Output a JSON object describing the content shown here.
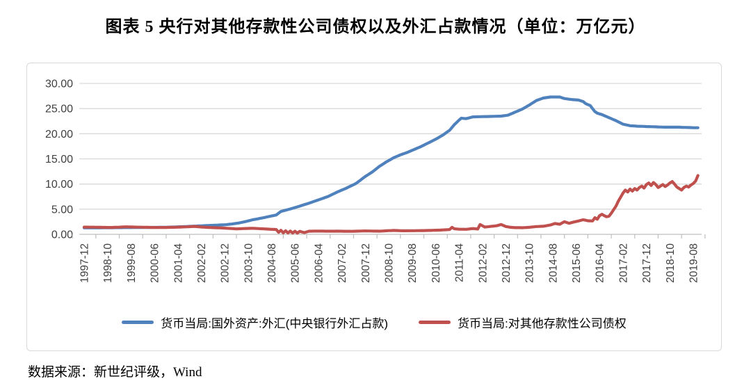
{
  "title": "图表 5  央行对其他存款性公司债权以及外汇占款情况（单位：万亿元）",
  "footer": {
    "source_label": "数据来源：新世纪评级，Wind"
  },
  "colors": {
    "series_fx_blue": "#4F81BD",
    "series_claims_red": "#C0504D",
    "gridline": "#D9D9D9",
    "axis_line": "#BFBFBF",
    "tick_text": "#404040",
    "panel_border": "#D9D9D9"
  },
  "chart_data": {
    "type": "line",
    "title": "图表 5  央行对其他存款性公司债权以及外汇占款情况（单位：万亿元）",
    "unit": "万亿元",
    "ylim": [
      0,
      30
    ],
    "y_tick_labels": [
      "30.00",
      "25.00",
      "20.00",
      "15.00",
      "10.00",
      "5.00",
      "0.00"
    ],
    "grid": "horizontal",
    "legend_position": "bottom",
    "x_start": "1997-12",
    "x_frequency": "monthly",
    "x_tick_every_months": 10,
    "x_tick_labels": [
      "1997-12",
      "1998-10",
      "1999-08",
      "2000-06",
      "2001-04",
      "2002-02",
      "2002-12",
      "2003-10",
      "2004-08",
      "2005-06",
      "2006-04",
      "2007-02",
      "2007-12",
      "2008-10",
      "2009-08",
      "2010-06",
      "2011-04",
      "2012-02",
      "2012-12",
      "2013-10",
      "2014-08",
      "2015-06",
      "2016-04",
      "2017-02",
      "2017-12",
      "2018-10",
      "2019-08"
    ],
    "series": [
      {
        "name": "货币当局:国外资产:外汇(中央银行外汇占款)",
        "color": "#4F81BD",
        "points_months_since_start_and_value": [
          [
            0,
            1.28
          ],
          [
            6,
            1.3
          ],
          [
            12,
            1.32
          ],
          [
            18,
            1.34
          ],
          [
            24,
            1.36
          ],
          [
            30,
            1.38
          ],
          [
            36,
            1.42
          ],
          [
            42,
            1.52
          ],
          [
            48,
            1.65
          ],
          [
            54,
            1.78
          ],
          [
            60,
            1.9
          ],
          [
            63,
            2.05
          ],
          [
            66,
            2.25
          ],
          [
            69,
            2.55
          ],
          [
            72,
            2.9
          ],
          [
            76,
            3.25
          ],
          [
            80,
            3.65
          ],
          [
            82,
            3.85
          ],
          [
            84,
            4.55
          ],
          [
            88,
            5.05
          ],
          [
            92,
            5.6
          ],
          [
            96,
            6.2
          ],
          [
            100,
            6.85
          ],
          [
            104,
            7.5
          ],
          [
            108,
            8.4
          ],
          [
            112,
            9.2
          ],
          [
            116,
            10.1
          ],
          [
            120,
            11.5
          ],
          [
            123,
            12.4
          ],
          [
            126,
            13.5
          ],
          [
            129,
            14.4
          ],
          [
            132,
            15.2
          ],
          [
            135,
            15.8
          ],
          [
            138,
            16.3
          ],
          [
            141,
            16.9
          ],
          [
            144,
            17.5
          ],
          [
            147,
            18.2
          ],
          [
            150,
            18.9
          ],
          [
            153,
            19.7
          ],
          [
            156,
            20.7
          ],
          [
            158,
            21.8
          ],
          [
            160,
            22.7
          ],
          [
            161,
            23.1
          ],
          [
            163,
            23.0
          ],
          [
            166,
            23.35
          ],
          [
            170,
            23.4
          ],
          [
            174,
            23.45
          ],
          [
            178,
            23.5
          ],
          [
            181,
            23.7
          ],
          [
            184,
            24.3
          ],
          [
            187,
            24.9
          ],
          [
            190,
            25.7
          ],
          [
            193,
            26.6
          ],
          [
            196,
            27.1
          ],
          [
            199,
            27.3
          ],
          [
            203,
            27.3
          ],
          [
            205,
            27.0
          ],
          [
            208,
            26.8
          ],
          [
            211,
            26.7
          ],
          [
            213,
            26.4
          ],
          [
            214,
            26.0
          ],
          [
            216,
            25.6
          ],
          [
            217,
            25.0
          ],
          [
            218,
            24.4
          ],
          [
            219,
            24.1
          ],
          [
            221,
            23.8
          ],
          [
            224,
            23.2
          ],
          [
            227,
            22.6
          ],
          [
            230,
            21.9
          ],
          [
            233,
            21.6
          ],
          [
            236,
            21.5
          ],
          [
            242,
            21.4
          ],
          [
            248,
            21.3
          ],
          [
            254,
            21.3
          ],
          [
            260,
            21.2
          ],
          [
            262,
            21.2
          ]
        ]
      },
      {
        "name": "货币当局:对其他存款性公司债权",
        "color": "#C0504D",
        "points_months_since_start_and_value": [
          [
            0,
            1.44
          ],
          [
            4,
            1.42
          ],
          [
            8,
            1.38
          ],
          [
            12,
            1.37
          ],
          [
            16,
            1.45
          ],
          [
            18,
            1.5
          ],
          [
            20,
            1.46
          ],
          [
            24,
            1.42
          ],
          [
            28,
            1.38
          ],
          [
            32,
            1.36
          ],
          [
            36,
            1.38
          ],
          [
            40,
            1.42
          ],
          [
            44,
            1.5
          ],
          [
            47,
            1.58
          ],
          [
            50,
            1.45
          ],
          [
            54,
            1.35
          ],
          [
            58,
            1.28
          ],
          [
            62,
            1.18
          ],
          [
            65,
            1.08
          ],
          [
            68,
            1.15
          ],
          [
            72,
            1.2
          ],
          [
            76,
            1.1
          ],
          [
            80,
            1.0
          ],
          [
            82,
            0.95
          ],
          [
            83,
            0.4
          ],
          [
            84,
            0.8
          ],
          [
            85,
            0.3
          ],
          [
            86,
            0.7
          ],
          [
            87,
            0.28
          ],
          [
            88,
            0.65
          ],
          [
            89,
            0.26
          ],
          [
            90,
            0.62
          ],
          [
            91,
            0.25
          ],
          [
            92,
            0.6
          ],
          [
            94,
            0.35
          ],
          [
            96,
            0.62
          ],
          [
            100,
            0.65
          ],
          [
            104,
            0.62
          ],
          [
            108,
            0.63
          ],
          [
            114,
            0.6
          ],
          [
            120,
            0.68
          ],
          [
            126,
            0.62
          ],
          [
            132,
            0.78
          ],
          [
            136,
            0.7
          ],
          [
            140,
            0.72
          ],
          [
            144,
            0.74
          ],
          [
            148,
            0.78
          ],
          [
            152,
            0.85
          ],
          [
            156,
            0.95
          ],
          [
            157,
            1.4
          ],
          [
            158,
            1.1
          ],
          [
            160,
            1.02
          ],
          [
            163,
            1.0
          ],
          [
            166,
            1.15
          ],
          [
            168,
            1.05
          ],
          [
            169,
            1.95
          ],
          [
            171,
            1.45
          ],
          [
            174,
            1.6
          ],
          [
            176,
            1.7
          ],
          [
            178,
            1.95
          ],
          [
            180,
            1.55
          ],
          [
            182,
            1.4
          ],
          [
            184,
            1.33
          ],
          [
            187,
            1.32
          ],
          [
            190,
            1.4
          ],
          [
            193,
            1.55
          ],
          [
            196,
            1.6
          ],
          [
            199,
            1.85
          ],
          [
            201,
            2.15
          ],
          [
            203,
            2.0
          ],
          [
            205,
            2.5
          ],
          [
            207,
            2.2
          ],
          [
            209,
            2.45
          ],
          [
            211,
            2.65
          ],
          [
            213,
            2.9
          ],
          [
            215,
            2.7
          ],
          [
            217,
            2.66
          ],
          [
            218,
            3.3
          ],
          [
            219,
            3.0
          ],
          [
            220,
            3.7
          ],
          [
            221,
            4.0
          ],
          [
            222,
            3.7
          ],
          [
            223,
            3.5
          ],
          [
            224,
            3.6
          ],
          [
            225,
            4.2
          ],
          [
            226,
            4.9
          ],
          [
            227,
            5.6
          ],
          [
            228,
            6.6
          ],
          [
            229,
            7.4
          ],
          [
            230,
            8.2
          ],
          [
            231,
            8.8
          ],
          [
            232,
            8.4
          ],
          [
            233,
            9.0
          ],
          [
            234,
            8.6
          ],
          [
            235,
            9.1
          ],
          [
            236,
            8.8
          ],
          [
            237,
            9.3
          ],
          [
            238,
            9.6
          ],
          [
            239,
            9.2
          ],
          [
            240,
            9.9
          ],
          [
            241,
            10.2
          ],
          [
            242,
            9.7
          ],
          [
            243,
            10.3
          ],
          [
            244,
            9.9
          ],
          [
            245,
            9.3
          ],
          [
            246,
            9.6
          ],
          [
            247,
            9.9
          ],
          [
            248,
            9.5
          ],
          [
            249,
            9.8
          ],
          [
            250,
            10.2
          ],
          [
            251,
            10.5
          ],
          [
            252,
            10.0
          ],
          [
            253,
            9.4
          ],
          [
            254,
            9.1
          ],
          [
            255,
            8.8
          ],
          [
            256,
            9.3
          ],
          [
            257,
            9.6
          ],
          [
            258,
            9.4
          ],
          [
            259,
            9.8
          ],
          [
            260,
            10.1
          ],
          [
            261,
            10.6
          ],
          [
            262,
            11.7
          ]
        ]
      }
    ]
  }
}
